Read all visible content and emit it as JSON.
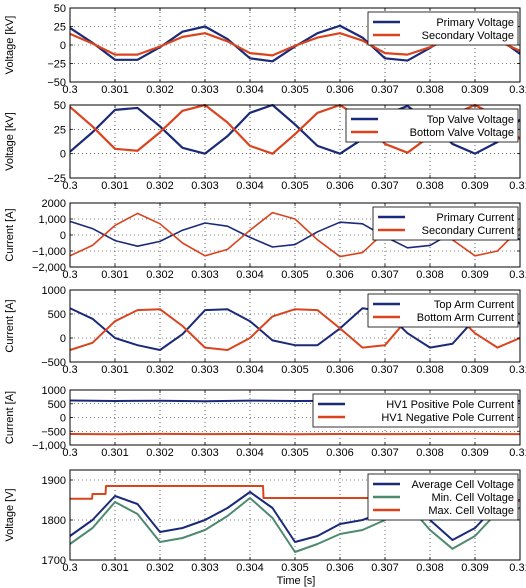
{
  "figure": {
    "xlabel": "Time [s]"
  },
  "chart_data": [
    {
      "type": "line",
      "ylabel": "Voltage [kV]",
      "xlim": [
        0.3,
        0.31
      ],
      "ylim": [
        -50,
        50
      ],
      "x_ticks": [
        "0.3",
        "0.301",
        "0.302",
        "0.303",
        "0.304",
        "0.305",
        "0.306",
        "0.307",
        "0.308",
        "0.309",
        "0.31"
      ],
      "y_ticks": [
        {
          "v": 50,
          "label": "50"
        },
        {
          "v": 25,
          "label": "25"
        },
        {
          "v": 0,
          "label": "0"
        },
        {
          "v": -25,
          "label": "−25"
        },
        {
          "v": -50,
          "label": "−50"
        }
      ],
      "grid": true,
      "legend": "top-right",
      "series": [
        {
          "name": "Primary Voltage",
          "color": "#1b2a78",
          "x": [
            0.3,
            0.3005,
            0.301,
            0.3015,
            0.302,
            0.3025,
            0.303,
            0.3035,
            0.304,
            0.3045,
            0.305,
            0.3055,
            0.306,
            0.3065,
            0.307,
            0.3075,
            0.308,
            0.3085,
            0.309,
            0.3095,
            0.31
          ],
          "y": [
            23,
            3,
            -20,
            -20,
            -3,
            18,
            25,
            8,
            -18,
            -22,
            -2,
            16,
            26,
            10,
            -18,
            -21,
            -4,
            16,
            25,
            10,
            -12
          ]
        },
        {
          "name": "Secondary Voltage",
          "color": "#d9441e",
          "x": [
            0.3,
            0.3005,
            0.301,
            0.3015,
            0.302,
            0.3025,
            0.303,
            0.3035,
            0.304,
            0.3045,
            0.305,
            0.3055,
            0.306,
            0.3065,
            0.307,
            0.3075,
            0.308,
            0.3085,
            0.309,
            0.3095,
            0.31
          ],
          "y": [
            15,
            2,
            -13,
            -13,
            -2,
            11,
            16,
            5,
            -11,
            -14,
            -1,
            10,
            16,
            6,
            -11,
            -13,
            -3,
            10,
            15,
            6,
            -8
          ]
        }
      ]
    },
    {
      "type": "line",
      "ylabel": "Voltage [kV]",
      "xlim": [
        0.3,
        0.31
      ],
      "ylim": [
        -25,
        50
      ],
      "x_ticks": [
        "0.3",
        "0.301",
        "0.302",
        "0.303",
        "0.304",
        "0.305",
        "0.306",
        "0.307",
        "0.308",
        "0.309",
        "0.31"
      ],
      "y_ticks": [
        {
          "v": 50,
          "label": "50"
        },
        {
          "v": 25,
          "label": "25"
        },
        {
          "v": 0,
          "label": "0"
        },
        {
          "v": -25,
          "label": "−25"
        }
      ],
      "grid": true,
      "legend": "top-right",
      "series": [
        {
          "name": "Top Valve Voltage",
          "color": "#1b2a78",
          "x": [
            0.3,
            0.3005,
            0.301,
            0.3015,
            0.302,
            0.3025,
            0.303,
            0.3035,
            0.304,
            0.3045,
            0.305,
            0.3055,
            0.306,
            0.3065,
            0.307,
            0.3075,
            0.308,
            0.3085,
            0.309,
            0.3095,
            0.31
          ],
          "y": [
            2,
            22,
            45,
            47,
            28,
            6,
            0,
            18,
            42,
            50,
            30,
            8,
            0,
            15,
            40,
            49,
            32,
            10,
            0,
            12,
            35
          ]
        },
        {
          "name": "Bottom Valve Voltage",
          "color": "#d9441e",
          "x": [
            0.3,
            0.3005,
            0.301,
            0.3015,
            0.302,
            0.3025,
            0.303,
            0.3035,
            0.304,
            0.3045,
            0.305,
            0.3055,
            0.306,
            0.3065,
            0.307,
            0.3075,
            0.308,
            0.3085,
            0.309,
            0.3095,
            0.31
          ],
          "y": [
            48,
            28,
            5,
            3,
            22,
            44,
            50,
            32,
            8,
            0,
            20,
            42,
            50,
            35,
            10,
            1,
            18,
            40,
            50,
            38,
            15
          ]
        }
      ]
    },
    {
      "type": "line",
      "ylabel": "Current [A]",
      "xlim": [
        0.3,
        0.31
      ],
      "ylim": [
        -2000,
        2000
      ],
      "x_ticks": [
        "0.3",
        "0.301",
        "0.302",
        "0.303",
        "0.304",
        "0.305",
        "0.306",
        "0.307",
        "0.308",
        "0.309",
        "0.31"
      ],
      "y_ticks": [
        {
          "v": 2000,
          "label": "2000"
        },
        {
          "v": 1000,
          "label": "1,000"
        },
        {
          "v": 0,
          "label": "0"
        },
        {
          "v": -1000,
          "label": "−1,000"
        },
        {
          "v": -2000,
          "label": "−2,000"
        }
      ],
      "grid": true,
      "legend": "top-right",
      "series": [
        {
          "name": "Primary Current",
          "color": "#1b2a78",
          "x": [
            0.3,
            0.3005,
            0.301,
            0.3015,
            0.302,
            0.3025,
            0.303,
            0.3035,
            0.304,
            0.3045,
            0.305,
            0.3055,
            0.306,
            0.3065,
            0.307,
            0.3075,
            0.308,
            0.3085,
            0.309,
            0.3095,
            0.31
          ],
          "y": [
            850,
            400,
            -350,
            -700,
            -400,
            300,
            750,
            550,
            -150,
            -750,
            -600,
            200,
            800,
            700,
            -100,
            -800,
            -650,
            150,
            800,
            600,
            -300
          ]
        },
        {
          "name": "Secondary Current",
          "color": "#d9441e",
          "x": [
            0.3,
            0.3005,
            0.301,
            0.3015,
            0.302,
            0.3025,
            0.303,
            0.3035,
            0.304,
            0.3045,
            0.305,
            0.3055,
            0.306,
            0.3065,
            0.307,
            0.3075,
            0.308,
            0.3085,
            0.309,
            0.3095,
            0.31
          ],
          "y": [
            -1300,
            -650,
            600,
            1350,
            700,
            -500,
            -1300,
            -900,
            300,
            1400,
            1000,
            -300,
            -1350,
            -1100,
            200,
            1400,
            1100,
            -300,
            -1300,
            -1000,
            400
          ]
        }
      ]
    },
    {
      "type": "line",
      "ylabel": "Current [A]",
      "xlim": [
        0.3,
        0.31
      ],
      "ylim": [
        -500,
        1000
      ],
      "x_ticks": [
        "0.3",
        "0.301",
        "0.302",
        "0.303",
        "0.304",
        "0.305",
        "0.306",
        "0.307",
        "0.308",
        "0.309",
        "0.31"
      ],
      "y_ticks": [
        {
          "v": 1000,
          "label": "1000"
        },
        {
          "v": 500,
          "label": "500"
        },
        {
          "v": 0,
          "label": "0"
        },
        {
          "v": -500,
          "label": "−500"
        }
      ],
      "grid": true,
      "legend": "top-right",
      "series": [
        {
          "name": "Top Arm Current",
          "color": "#1b2a78",
          "x": [
            0.3,
            0.3005,
            0.301,
            0.3015,
            0.302,
            0.3025,
            0.303,
            0.3035,
            0.304,
            0.3045,
            0.305,
            0.3055,
            0.306,
            0.3065,
            0.307,
            0.3075,
            0.308,
            0.3085,
            0.309,
            0.3095,
            0.31
          ],
          "y": [
            620,
            400,
            0,
            -150,
            -250,
            80,
            580,
            600,
            350,
            -50,
            -150,
            -150,
            200,
            620,
            550,
            100,
            -200,
            -120,
            400,
            600,
            300
          ]
        },
        {
          "name": "Bottom Arm Current",
          "color": "#d9441e",
          "x": [
            0.3,
            0.3005,
            0.301,
            0.3015,
            0.302,
            0.3025,
            0.303,
            0.3035,
            0.304,
            0.3045,
            0.305,
            0.3055,
            0.306,
            0.3065,
            0.307,
            0.3075,
            0.308,
            0.3085,
            0.309,
            0.3095,
            0.31
          ],
          "y": [
            -250,
            -100,
            350,
            580,
            600,
            250,
            -200,
            -250,
            0,
            450,
            600,
            580,
            200,
            -200,
            -150,
            400,
            600,
            550,
            100,
            -200,
            0
          ]
        }
      ]
    },
    {
      "type": "line",
      "ylabel": "Current [A]",
      "xlim": [
        0.3,
        0.31
      ],
      "ylim": [
        -1000,
        1000
      ],
      "x_ticks": [
        "0.3",
        "0.301",
        "0.302",
        "0.303",
        "0.304",
        "0.305",
        "0.306",
        "0.307",
        "0.308",
        "0.309",
        "0.31"
      ],
      "y_ticks": [
        {
          "v": 1000,
          "label": "1000"
        },
        {
          "v": 500,
          "label": "500"
        },
        {
          "v": 0,
          "label": "0"
        },
        {
          "v": -500,
          "label": "−500"
        },
        {
          "v": -1000,
          "label": "−1,000"
        }
      ],
      "grid": true,
      "legend": "top-right",
      "series": [
        {
          "name": "HV1 Positive Pole Current",
          "color": "#1b2a78",
          "x": [
            0.3,
            0.301,
            0.302,
            0.303,
            0.304,
            0.305,
            0.306,
            0.307,
            0.308,
            0.309,
            0.31
          ],
          "y": [
            620,
            600,
            610,
            590,
            615,
            600,
            605,
            595,
            610,
            600,
            605
          ]
        },
        {
          "name": "HV1 Negative Pole Current",
          "color": "#d9441e",
          "x": [
            0.3,
            0.301,
            0.302,
            0.303,
            0.304,
            0.305,
            0.306,
            0.307,
            0.308,
            0.309,
            0.31
          ],
          "y": [
            -600,
            -610,
            -595,
            -605,
            -600,
            -610,
            -598,
            -605,
            -600,
            -595,
            -605
          ]
        }
      ]
    },
    {
      "type": "line",
      "ylabel": "Voltage [V]",
      "xlim": [
        0.3,
        0.31
      ],
      "ylim": [
        1700,
        1925
      ],
      "x_ticks": [
        "0.3",
        "0.301",
        "0.302",
        "0.303",
        "0.304",
        "0.305",
        "0.306",
        "0.307",
        "0.308",
        "0.309",
        "0.31"
      ],
      "y_ticks": [
        {
          "v": 1900,
          "label": "1900"
        },
        {
          "v": 1800,
          "label": "1800"
        },
        {
          "v": 1700,
          "label": "1700"
        }
      ],
      "grid": true,
      "legend": "top-right",
      "series": [
        {
          "name": "Average Cell Voltage",
          "color": "#1b2a78",
          "x": [
            0.3,
            0.3005,
            0.301,
            0.3015,
            0.302,
            0.3025,
            0.303,
            0.3035,
            0.304,
            0.3045,
            0.305,
            0.3055,
            0.306,
            0.3065,
            0.307,
            0.3075,
            0.308,
            0.3085,
            0.309,
            0.3095,
            0.31
          ],
          "y": [
            1760,
            1800,
            1860,
            1840,
            1770,
            1780,
            1800,
            1830,
            1870,
            1830,
            1745,
            1760,
            1790,
            1800,
            1820,
            1860,
            1800,
            1750,
            1780,
            1840,
            1850
          ]
        },
        {
          "name": "Min. Cell Voltage",
          "color": "#4e8a6f",
          "x": [
            0.3,
            0.3005,
            0.301,
            0.3015,
            0.302,
            0.3025,
            0.303,
            0.3035,
            0.304,
            0.3045,
            0.305,
            0.3055,
            0.306,
            0.3065,
            0.307,
            0.3075,
            0.308,
            0.3085,
            0.309,
            0.3095,
            0.31
          ],
          "y": [
            1740,
            1780,
            1845,
            1815,
            1745,
            1755,
            1775,
            1810,
            1855,
            1805,
            1720,
            1740,
            1765,
            1775,
            1800,
            1840,
            1775,
            1728,
            1760,
            1820,
            1830
          ]
        },
        {
          "name": "Max. Cell Voltage",
          "color": "#d9441e",
          "x": [
            0.3,
            0.30049,
            0.3005,
            0.30079,
            0.3008,
            0.30429,
            0.3043,
            0.30899,
            0.309,
            0.31
          ],
          "y": [
            1853,
            1853,
            1865,
            1865,
            1885,
            1885,
            1855,
            1855,
            1848,
            1848
          ]
        }
      ]
    }
  ]
}
